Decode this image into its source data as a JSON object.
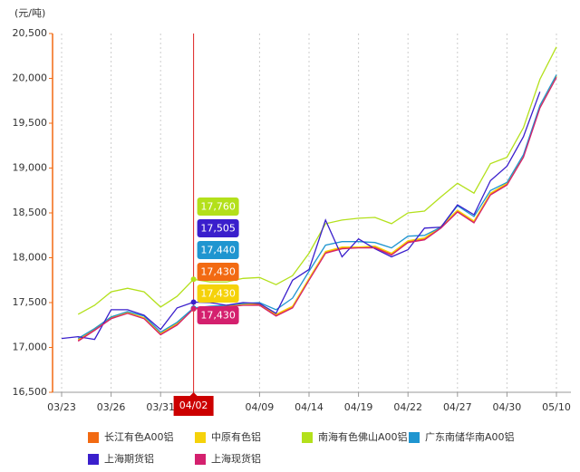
{
  "chart_data": {
    "type": "line",
    "y_label": "(元/吨)",
    "categories": [
      "03/23",
      null,
      null,
      "03/26",
      null,
      null,
      "03/31",
      null,
      "04/02",
      null,
      null,
      null,
      "04/09",
      null,
      null,
      "04/14",
      null,
      null,
      "04/19",
      null,
      null,
      "04/22",
      null,
      null,
      "04/27",
      null,
      null,
      "04/30",
      null,
      null,
      "05/10"
    ],
    "ylim": [
      16500,
      20500
    ],
    "yticks": [
      {
        "value": 16500,
        "label": "16,500"
      },
      {
        "value": 17000,
        "label": "17,000"
      },
      {
        "value": 17500,
        "label": "17,500"
      },
      {
        "value": 18000,
        "label": "18,000"
      },
      {
        "value": 18500,
        "label": "18,500"
      },
      {
        "value": 19000,
        "label": "19,000"
      },
      {
        "value": 19500,
        "label": "19,500"
      },
      {
        "value": 20000,
        "label": "20,000"
      },
      {
        "value": 20500,
        "label": "20,500"
      }
    ],
    "grid": true,
    "legend": "bottom",
    "series": [
      {
        "name": "长江有色A00铝",
        "color": "#f26a12",
        "values": [
          null,
          17080,
          17200,
          17330,
          17390,
          17330,
          17150,
          17260,
          17430,
          17450,
          17460,
          17480,
          17480,
          17360,
          17450,
          17760,
          18060,
          18110,
          18120,
          18120,
          18040,
          18180,
          18210,
          18340,
          18520,
          18400,
          18710,
          18820,
          19130,
          19680,
          20020
        ],
        "value_labels": [
          null,
          null,
          null,
          null,
          null,
          null,
          null,
          null,
          "17,430",
          null,
          null,
          null,
          null,
          null,
          null,
          null,
          null,
          null,
          null,
          null,
          null,
          null,
          null,
          null,
          null,
          null,
          null,
          null,
          null,
          null,
          null
        ]
      },
      {
        "name": "中原有色铝",
        "color": "#f5d20a",
        "values": [
          null,
          17090,
          17210,
          17340,
          17390,
          17330,
          17160,
          17270,
          17430,
          17450,
          17470,
          17480,
          17490,
          17370,
          17460,
          17770,
          18070,
          18120,
          18120,
          18130,
          18050,
          18190,
          18220,
          18350,
          18530,
          18410,
          18720,
          18830,
          19140,
          19690,
          20030
        ],
        "value_labels": [
          null,
          null,
          null,
          null,
          null,
          null,
          null,
          null,
          "17,430",
          null,
          null,
          null,
          null,
          null,
          null,
          null,
          null,
          null,
          null,
          null,
          null,
          null,
          null,
          null,
          null,
          null,
          null,
          null,
          null,
          null,
          null
        ]
      },
      {
        "name": "南海有色佛山A00铝",
        "color": "#b3e01b",
        "values": [
          null,
          17370,
          17470,
          17620,
          17660,
          17620,
          17450,
          17570,
          17760,
          17730,
          17730,
          17770,
          17780,
          17700,
          17800,
          18050,
          18380,
          18420,
          18440,
          18450,
          18380,
          18500,
          18520,
          18680,
          18830,
          18720,
          19050,
          19120,
          19450,
          19990,
          20350
        ],
        "value_labels": [
          null,
          null,
          null,
          null,
          null,
          null,
          null,
          null,
          "17,760",
          null,
          null,
          null,
          null,
          null,
          null,
          null,
          null,
          null,
          null,
          null,
          null,
          null,
          null,
          null,
          null,
          null,
          null,
          null,
          null,
          null,
          null
        ]
      },
      {
        "name": "广东南储华南A00铝",
        "color": "#1f95d0",
        "values": [
          null,
          17100,
          17210,
          17340,
          17400,
          17350,
          17170,
          17280,
          17440,
          17460,
          17470,
          17490,
          17500,
          17420,
          17550,
          17850,
          18140,
          18180,
          18180,
          18170,
          18110,
          18240,
          18250,
          18340,
          18580,
          18460,
          18750,
          18840,
          19150,
          19700,
          20040
        ],
        "value_labels": [
          null,
          null,
          null,
          null,
          null,
          null,
          null,
          null,
          "17,440",
          null,
          null,
          null,
          null,
          null,
          null,
          null,
          null,
          null,
          null,
          null,
          null,
          null,
          null,
          null,
          null,
          null,
          null,
          null,
          null,
          null,
          null
        ]
      },
      {
        "name": "上海期货铝",
        "color": "#3a1fcc",
        "values": [
          17100,
          17120,
          17090,
          17420,
          17420,
          17360,
          17200,
          17440,
          17505,
          17500,
          17470,
          17500,
          17490,
          17380,
          17750,
          17870,
          18420,
          18010,
          18210,
          18100,
          18010,
          18090,
          18330,
          18340,
          18590,
          18480,
          18860,
          19020,
          19350,
          19850,
          null
        ],
        "value_labels": [
          null,
          null,
          null,
          null,
          null,
          null,
          null,
          null,
          "17,505",
          null,
          null,
          null,
          null,
          null,
          null,
          null,
          null,
          null,
          null,
          null,
          null,
          null,
          null,
          null,
          null,
          null,
          null,
          null,
          null,
          null,
          null
        ]
      },
      {
        "name": "上海现货铝",
        "color": "#d4206e",
        "values": [
          null,
          17070,
          17190,
          17320,
          17380,
          17320,
          17140,
          17250,
          17430,
          17440,
          17450,
          17470,
          17470,
          17350,
          17440,
          17750,
          18050,
          18100,
          18110,
          18110,
          18030,
          18170,
          18200,
          18330,
          18510,
          18390,
          18700,
          18810,
          19120,
          19670,
          20010
        ],
        "value_labels": [
          null,
          null,
          null,
          null,
          null,
          null,
          null,
          null,
          "17,430",
          null,
          null,
          null,
          null,
          null,
          null,
          null,
          null,
          null,
          null,
          null,
          null,
          null,
          null,
          null,
          null,
          null,
          null,
          null,
          null,
          null,
          null
        ]
      }
    ]
  }
}
